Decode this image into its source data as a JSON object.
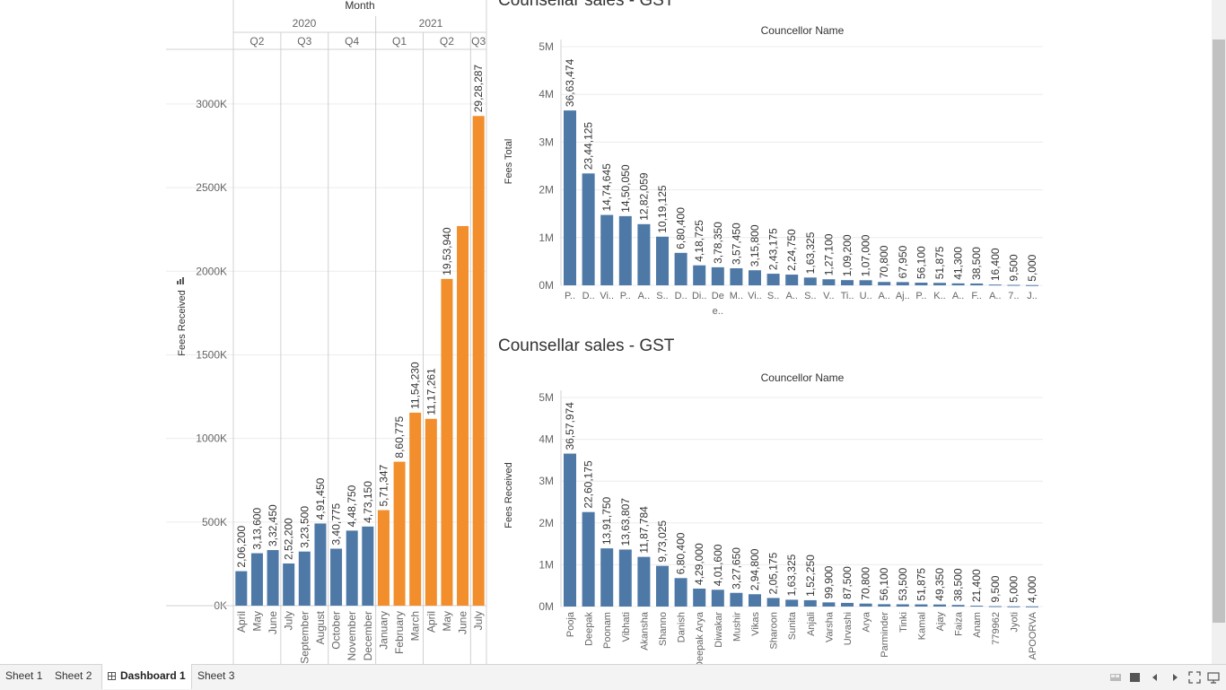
{
  "tabs": [
    {
      "label": "Sheet 1",
      "active": false
    },
    {
      "label": "Sheet 2",
      "active": false
    },
    {
      "label": "Dashboard 1",
      "active": true
    },
    {
      "label": "Sheet 3",
      "active": false
    }
  ],
  "colors": {
    "blue": "#4e79a7",
    "orange": "#f28e2b",
    "grid": "#ececec",
    "axis": "#d0d0d0"
  },
  "left_chart": {
    "header": "Month",
    "years": [
      "2020",
      "2021"
    ],
    "quarters": [
      "Q2",
      "Q3",
      "Q4",
      "Q1",
      "Q2",
      "Q3"
    ]
  },
  "chart_data": [
    {
      "type": "bar",
      "ylabel": "Fees Received",
      "ylim": [
        0,
        3300000
      ],
      "y_ticks": [
        "0K",
        "500K",
        "1000K",
        "1500K",
        "2000K",
        "2500K",
        "3000K"
      ],
      "y_tick_values": [
        0,
        500000,
        1000000,
        1500000,
        2000000,
        2500000,
        3000000
      ],
      "categories": [
        "April",
        "May",
        "June",
        "July",
        "September",
        "August",
        "October",
        "November",
        "December",
        "January",
        "February",
        "March",
        "April",
        "May",
        "June",
        "July"
      ],
      "values": [
        206200,
        313600,
        332450,
        252200,
        323500,
        491450,
        340775,
        448750,
        473150,
        571347,
        860775,
        1154230,
        1117261,
        1953940,
        2270000,
        2928287
      ],
      "data_labels": [
        "2,06,200",
        "3,13,600",
        "3,32,450",
        "2,52,200",
        "3,23,500",
        "4,91,450",
        "3,40,775",
        "4,48,750",
        "4,73,150",
        "5,71,347",
        "8,60,775",
        "11,54,230",
        "11,17,261",
        "19,53,940",
        "",
        "29,28,287"
      ],
      "year": [
        "2020",
        "2020",
        "2020",
        "2020",
        "2020",
        "2020",
        "2020",
        "2020",
        "2020",
        "2021",
        "2021",
        "2021",
        "2021",
        "2021",
        "2021",
        "2021"
      ],
      "grid": true
    },
    {
      "type": "bar",
      "title": "Counsellar sales - GST",
      "xlabel": "Councellor Name",
      "ylabel": "Fees Total",
      "ylim": [
        0,
        5000000
      ],
      "y_ticks": [
        "0M",
        "1M",
        "2M",
        "3M",
        "4M",
        "5M"
      ],
      "y_tick_values": [
        0,
        1000000,
        2000000,
        3000000,
        4000000,
        5000000
      ],
      "categories": [
        "P..",
        "D..",
        "Vi..",
        "P..",
        "A..",
        "S..",
        "D..",
        "Di..",
        "De e..",
        "M..",
        "Vi..",
        "S..",
        "A..",
        "S..",
        "V..",
        "Ti..",
        "U..",
        "A..",
        "Aj..",
        "P..",
        "K..",
        "A..",
        "F..",
        "A..",
        "7..",
        "J.."
      ],
      "values": [
        3663474,
        2344125,
        1474645,
        1450050,
        1282059,
        1019125,
        680400,
        418725,
        378350,
        357450,
        315800,
        243175,
        224750,
        163325,
        127100,
        109200,
        107000,
        70800,
        67950,
        56100,
        51875,
        41300,
        38500,
        16400,
        9500,
        5000
      ],
      "data_labels": [
        "36,63,474",
        "23,44,125",
        "14,74,645",
        "14,50,050",
        "12,82,059",
        "10,19,125",
        "6,80,400",
        "4,18,725",
        "3,78,350",
        "3,57,450",
        "3,15,800",
        "2,43,175",
        "2,24,750",
        "1,63,325",
        "1,27,100",
        "1,09,200",
        "1,07,000",
        "70,800",
        "67,950",
        "56,100",
        "51,875",
        "41,300",
        "38,500",
        "16,400",
        "9,500",
        "5,000"
      ],
      "grid": true
    },
    {
      "type": "bar",
      "title": "Counsellar sales - GST",
      "xlabel": "Councellor Name",
      "ylabel": "Fees Received",
      "ylim": [
        0,
        5000000
      ],
      "y_ticks": [
        "0M",
        "1M",
        "2M",
        "3M",
        "4M",
        "5M"
      ],
      "y_tick_values": [
        0,
        1000000,
        2000000,
        3000000,
        4000000,
        5000000
      ],
      "categories": [
        "Pooja",
        "Deepak",
        "Poonam",
        "Vibhati",
        "Akansha",
        "Shanno",
        "Danish",
        "Deepak Arya",
        "Diwakar",
        "Mushir",
        "Vikas",
        "Sharoon",
        "Sunita",
        "Anjali",
        "Varsha",
        "Urvashi",
        "Arya",
        "Parminder",
        "Tinki",
        "Kamal",
        "Ajay",
        "Faiza",
        "Anam",
        "779962",
        "Jyoti",
        "APOORVA"
      ],
      "values": [
        3657974,
        2260175,
        1391750,
        1363807,
        1187784,
        973025,
        680400,
        429000,
        401600,
        327650,
        294800,
        205175,
        163325,
        152250,
        99900,
        87500,
        70800,
        56100,
        53500,
        51875,
        49350,
        38500,
        21400,
        9500,
        5000,
        4000
      ],
      "data_labels": [
        "36,57,974",
        "22,60,175",
        "13,91,750",
        "13,63,807",
        "11,87,784",
        "9,73,025",
        "6,80,400",
        "4,29,000",
        "4,01,600",
        "3,27,650",
        "2,94,800",
        "2,05,175",
        "1,63,325",
        "1,52,250",
        "99,900",
        "87,500",
        "70,800",
        "56,100",
        "53,500",
        "51,875",
        "49,350",
        "38,500",
        "21,400",
        "9,500",
        "5,000",
        "4,000"
      ],
      "grid": true
    }
  ]
}
